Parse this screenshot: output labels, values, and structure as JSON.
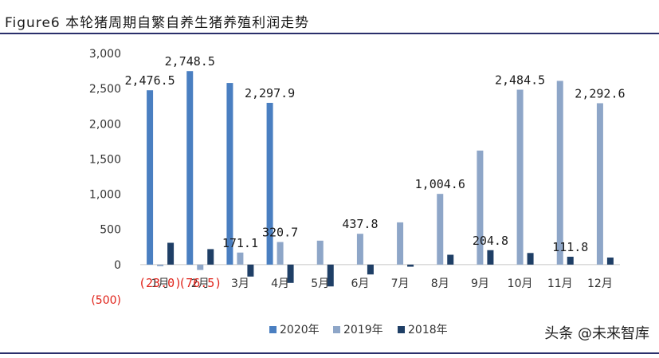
{
  "header": {
    "title": "Figure6 本轮猪周期自繁自养生猪养殖利润走势"
  },
  "watermark": "头条 @未来智库",
  "chart_data": {
    "type": "bar",
    "categories": [
      "1月",
      "2月",
      "3月",
      "4月",
      "5月",
      "6月",
      "7月",
      "8月",
      "9月",
      "10月",
      "11月",
      "12月"
    ],
    "series": [
      {
        "name": "2020年",
        "color": "#4a7fc1",
        "values": [
          2476.5,
          2748.5,
          2580,
          2297.9,
          null,
          null,
          null,
          null,
          null,
          null,
          null,
          null
        ]
      },
      {
        "name": "2019年",
        "color": "#8ea6c8",
        "values": [
          -23.0,
          -76.5,
          171.1,
          320.7,
          340,
          437.8,
          600,
          1004.6,
          1620,
          2484.5,
          2610,
          2292.6
        ]
      },
      {
        "name": "2018年",
        "color": "#1f3f66",
        "values": [
          310,
          220,
          -170,
          -260,
          -310,
          -140,
          -30,
          140,
          204.8,
          165,
          111.8,
          100
        ]
      }
    ],
    "yticks": [
      {
        "v": 3000,
        "label": "3,000"
      },
      {
        "v": 2500,
        "label": "2,500"
      },
      {
        "v": 2000,
        "label": "2,000"
      },
      {
        "v": 1500,
        "label": "1,500"
      },
      {
        "v": 1000,
        "label": "1,000"
      },
      {
        "v": 500,
        "label": "500"
      },
      {
        "v": 0,
        "label": "0"
      },
      {
        "v": -500,
        "label": "(500)"
      }
    ],
    "ylim": [
      -500,
      3000
    ],
    "labels": [
      {
        "series": 0,
        "index": 0,
        "text": "2,476.5",
        "color": "#1a1a1a"
      },
      {
        "series": 0,
        "index": 1,
        "text": "2,748.5",
        "color": "#1a1a1a"
      },
      {
        "series": 0,
        "index": 3,
        "text": "2,297.9",
        "color": "#1a1a1a"
      },
      {
        "series": 1,
        "index": 0,
        "text": "(23.0)",
        "color": "#e0231a"
      },
      {
        "series": 1,
        "index": 1,
        "text": "(76.5)",
        "color": "#e0231a"
      },
      {
        "series": 1,
        "index": 2,
        "text": "171.1",
        "color": "#1a1a1a"
      },
      {
        "series": 1,
        "index": 3,
        "text": "320.7",
        "color": "#1a1a1a"
      },
      {
        "series": 1,
        "index": 5,
        "text": "437.8",
        "color": "#1a1a1a"
      },
      {
        "series": 1,
        "index": 7,
        "text": "1,004.6",
        "color": "#1a1a1a"
      },
      {
        "series": 1,
        "index": 9,
        "text": "2,484.5",
        "color": "#1a1a1a"
      },
      {
        "series": 1,
        "index": 11,
        "text": "2,292.6",
        "color": "#1a1a1a"
      },
      {
        "series": 2,
        "index": 8,
        "text": "204.8",
        "color": "#1a1a1a"
      },
      {
        "series": 2,
        "index": 10,
        "text": "111.8",
        "color": "#1a1a1a"
      }
    ],
    "legend_position": "bottom",
    "ytick_negative_color": "#e0231a"
  }
}
